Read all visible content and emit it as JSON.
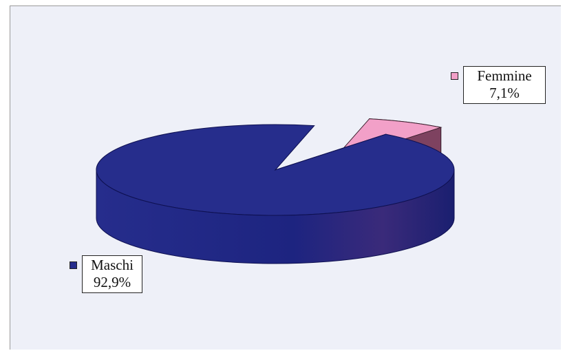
{
  "chart_data": {
    "type": "pie",
    "style": "3d",
    "slices": [
      {
        "label": "Maschi",
        "value": 92.9,
        "value_label": "92,9%",
        "color": "#262d8c"
      },
      {
        "label": "Femmine",
        "value": 7.1,
        "value_label": "7,1%",
        "color": "#f2a0c8"
      }
    ],
    "legend": "none",
    "background": "#eef0f8"
  }
}
